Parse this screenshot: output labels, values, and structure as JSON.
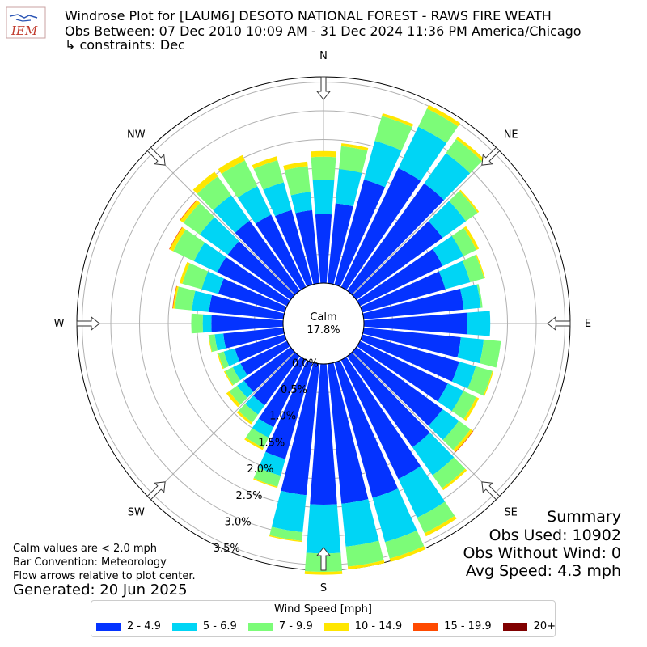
{
  "header": {
    "title_line1": "Windrose Plot for [LAUM6] DESOTO NATIONAL FOREST - RAWS FIRE WEATH",
    "title_line2": "Obs Between: 07 Dec 2010 10:09 AM - 31 Dec 2024 11:36 PM America/Chicago",
    "title_line3": "↳ constraints: Dec",
    "logo_text": "IEM"
  },
  "notes": {
    "calm_note": "Calm values are < 2.0 mph",
    "bar_convention": "Bar Convention: Meteorology",
    "flow_note": "Flow arrows relative to plot center.",
    "generated": "Generated: 20 Jun 2025"
  },
  "summary": {
    "heading": "Summary",
    "obs_used": "Obs Used: 10902",
    "obs_without_wind": "Obs Without Wind: 0",
    "avg_speed": "Avg Speed: 4.3 mph"
  },
  "chart_data": {
    "type": "windrose",
    "calm_label": "Calm",
    "calm_value": "17.8%",
    "calm_percent": 17.8,
    "directions": [
      "N",
      "NE",
      "E",
      "SE",
      "S",
      "SW",
      "W",
      "NW"
    ],
    "radial_ticks": [
      "0.0%",
      "0.5%",
      "1.0%",
      "1.5%",
      "2.0%",
      "2.5%",
      "3.0%",
      "3.5%"
    ],
    "legend_title": "Wind Speed [mph]",
    "bins": [
      {
        "label": "2 - 4.9",
        "color": "#0433ff"
      },
      {
        "label": "5 - 6.9",
        "color": "#00d5f5"
      },
      {
        "label": "7 - 9.9",
        "color": "#7cfc78"
      },
      {
        "label": "10 - 14.9",
        "color": "#ffe600"
      },
      {
        "label": "15 - 19.9",
        "color": "#ff4a00"
      },
      {
        "label": "20+",
        "color": "#800000"
      }
    ],
    "sector_angles_deg": [
      0,
      10,
      20,
      30,
      40,
      50,
      60,
      70,
      80,
      90,
      100,
      110,
      120,
      130,
      140,
      150,
      160,
      170,
      180,
      190,
      200,
      210,
      220,
      230,
      240,
      250,
      260,
      270,
      280,
      290,
      300,
      310,
      320,
      330,
      340,
      350
    ],
    "cumulative_percent": [
      [
        1.2,
        1.8,
        2.2,
        2.3,
        2.3,
        2.3
      ],
      [
        1.4,
        2.0,
        2.4,
        2.45,
        2.45,
        2.45
      ],
      [
        1.9,
        2.6,
        3.05,
        3.1,
        3.1,
        3.1
      ],
      [
        2.3,
        3.1,
        3.45,
        3.52,
        3.52,
        3.52
      ],
      [
        2.3,
        2.95,
        3.25,
        3.3,
        3.3,
        3.3
      ],
      [
        1.85,
        2.35,
        2.6,
        2.63,
        2.63,
        2.63
      ],
      [
        1.6,
        2.0,
        2.25,
        2.3,
        2.3,
        2.3
      ],
      [
        1.5,
        1.95,
        2.2,
        2.22,
        2.22,
        2.22
      ],
      [
        1.75,
        2.05,
        2.08,
        2.08,
        2.08,
        2.08
      ],
      [
        1.8,
        2.2,
        2.2,
        2.2,
        2.2,
        2.2
      ],
      [
        1.7,
        2.1,
        2.4,
        2.4,
        2.4,
        2.4
      ],
      [
        1.75,
        2.05,
        2.35,
        2.37,
        2.37,
        2.37
      ],
      [
        1.7,
        2.0,
        2.25,
        2.3,
        2.3,
        2.3
      ],
      [
        1.85,
        2.2,
        2.45,
        2.5,
        2.51,
        2.51
      ],
      [
        1.95,
        2.55,
        2.83,
        2.87,
        2.87,
        2.87
      ],
      [
        2.3,
        3.05,
        3.35,
        3.41,
        3.41,
        3.41
      ],
      [
        2.45,
        3.25,
        3.55,
        3.61,
        3.61,
        3.61
      ],
      [
        2.45,
        3.2,
        3.55,
        3.6,
        3.6,
        3.6
      ],
      [
        2.45,
        3.3,
        3.62,
        3.67,
        3.67,
        3.67
      ],
      [
        2.3,
        2.95,
        3.1,
        3.12,
        3.12,
        3.12
      ],
      [
        1.75,
        2.05,
        2.25,
        2.27,
        2.27,
        2.27
      ],
      [
        1.3,
        1.5,
        1.7,
        1.74,
        1.74,
        1.74
      ],
      [
        1.05,
        1.25,
        1.42,
        1.46,
        1.46,
        1.46
      ],
      [
        1.0,
        1.15,
        1.32,
        1.38,
        1.38,
        1.38
      ],
      [
        0.9,
        1.05,
        1.2,
        1.22,
        1.22,
        1.22
      ],
      [
        0.9,
        1.1,
        1.2,
        1.22,
        1.22,
        1.22
      ],
      [
        1.05,
        1.2,
        1.3,
        1.31,
        1.31,
        1.31
      ],
      [
        1.25,
        1.4,
        1.6,
        1.6,
        1.6,
        1.6
      ],
      [
        1.3,
        1.6,
        1.9,
        1.93,
        1.94,
        1.94
      ],
      [
        1.2,
        1.5,
        1.85,
        1.9,
        1.9,
        1.9
      ],
      [
        1.35,
        1.8,
        2.2,
        2.27,
        2.28,
        2.28
      ],
      [
        1.35,
        1.95,
        2.3,
        2.37,
        2.38,
        2.38
      ],
      [
        1.5,
        2.05,
        2.45,
        2.55,
        2.55,
        2.55
      ],
      [
        1.4,
        1.95,
        2.45,
        2.55,
        2.55,
        2.55
      ],
      [
        1.35,
        1.85,
        2.25,
        2.32,
        2.32,
        2.32
      ],
      [
        1.28,
        1.6,
        2.05,
        2.13,
        2.13,
        2.13
      ]
    ]
  }
}
